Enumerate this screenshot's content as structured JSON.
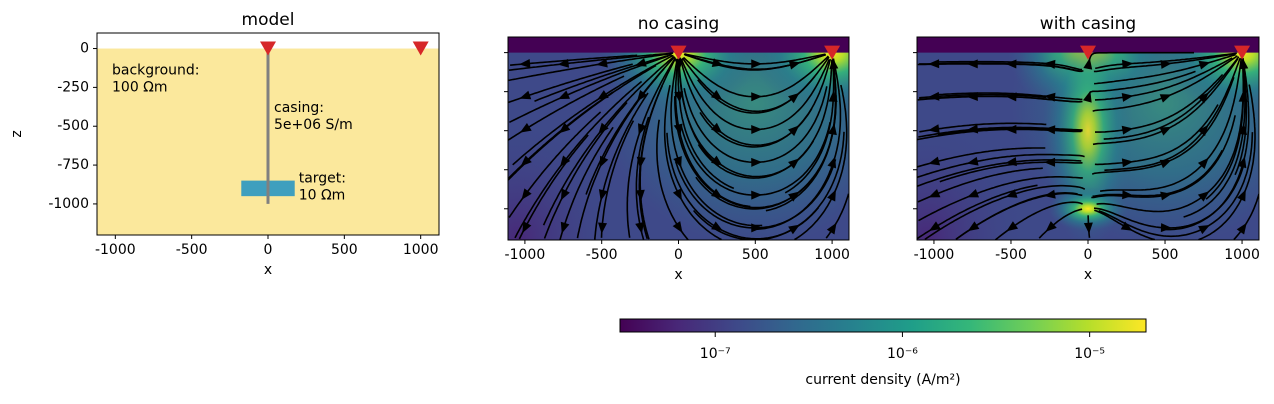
{
  "chart_data": [
    {
      "type": "model",
      "title": "model",
      "xlabel": "x",
      "ylabel": "z",
      "xlim": [
        -1120,
        1120
      ],
      "ylim": [
        -1200,
        100
      ],
      "xticks": [
        -1000,
        -500,
        0,
        500,
        1000
      ],
      "yticks": [
        0,
        -250,
        -500,
        -750,
        -1000
      ],
      "background": {
        "z_top": 0,
        "color": "#fbe89c",
        "label": [
          "background:",
          "100 Ωm"
        ]
      },
      "casing": {
        "x": 0,
        "z": [
          0,
          -1000
        ],
        "color": "#808080",
        "label": [
          "casing:",
          "5e+06 S/m"
        ]
      },
      "target": {
        "x": [
          -175,
          175
        ],
        "z": [
          -850,
          -950
        ],
        "color": "#3f9fbe",
        "label": [
          "target:",
          "10 Ωm"
        ]
      },
      "electrodes": {
        "x": [
          0,
          1000
        ],
        "z": [
          0,
          0
        ],
        "color": "#d62728"
      }
    },
    {
      "type": "streamplot",
      "title": "no casing",
      "xlabel": "x",
      "xlim": [
        -1110,
        1110
      ],
      "ylim": [
        -1200,
        100
      ],
      "xticks": [
        -1000,
        -500,
        0,
        500,
        1000
      ],
      "yticks": [
        0,
        -250,
        -500,
        -750,
        -1000
      ],
      "electrodes": {
        "x": [
          0,
          1000
        ],
        "z": [
          0,
          0
        ],
        "color": "#d62728"
      }
    },
    {
      "type": "streamplot",
      "title": "with casing",
      "xlabel": "x",
      "xlim": [
        -1110,
        1110
      ],
      "ylim": [
        -1200,
        100
      ],
      "xticks": [
        -1000,
        -500,
        0,
        500,
        1000
      ],
      "yticks": [
        0,
        -250,
        -500,
        -750,
        -1000
      ],
      "casing": {
        "x": 0,
        "z": [
          0,
          -1000
        ]
      },
      "electrodes": {
        "x": [
          0,
          1000
        ],
        "z": [
          0,
          0
        ],
        "color": "#d62728"
      }
    },
    {
      "type": "colorbar",
      "label": "current density (A/m²)",
      "log": true,
      "xlim": [
        3.1e-08,
        2e-05
      ],
      "xticks": [
        {
          "value": 1e-07,
          "label": "10⁻⁷"
        },
        {
          "value": 1e-06,
          "label": "10⁻⁶"
        },
        {
          "value": 1e-05,
          "label": "10⁻⁵"
        }
      ],
      "colors": [
        "#440154",
        "#482878",
        "#3e4989",
        "#31688e",
        "#26828e",
        "#1f9e89",
        "#35b779",
        "#6ece58",
        "#b5de2b",
        "#fde725"
      ]
    }
  ]
}
